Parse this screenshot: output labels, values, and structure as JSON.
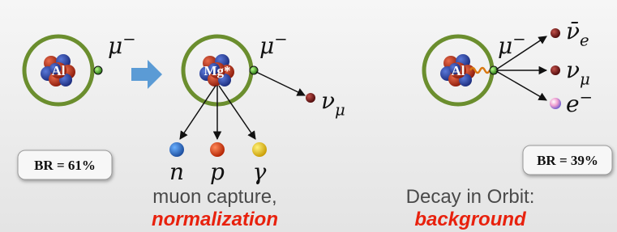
{
  "capture": {
    "nucleus": "Al",
    "muon": {
      "symbol": "μ",
      "sup": "−"
    },
    "excited": "Mg*",
    "muon_out": {
      "symbol": "μ",
      "sup": "−"
    },
    "neutrino": {
      "symbol": "ν",
      "sub": "μ"
    },
    "products": [
      "n",
      "p",
      "γ"
    ],
    "branching": "BR = 61%",
    "caption": "muon capture,",
    "role": "normalization"
  },
  "dio": {
    "nucleus": "Al",
    "muon": {
      "symbol": "μ",
      "sup": "−"
    },
    "products": [
      {
        "symbol": "ν̄",
        "sub": "e"
      },
      {
        "symbol": "ν",
        "sub": "μ"
      },
      {
        "symbol": "e",
        "sup": "−"
      }
    ],
    "branching": "BR = 39%",
    "caption": "Decay in Orbit:",
    "role": "background"
  }
}
